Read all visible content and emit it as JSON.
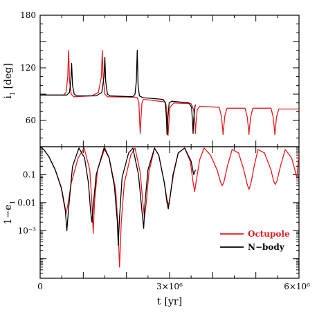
{
  "chart_data": [
    {
      "type": "line",
      "panel": "top",
      "ylabel": "i",
      "ylabel_sub": "1",
      "ylabel_unit": "[deg]",
      "xlim": [
        0,
        6000000
      ],
      "ylim": [
        30,
        180
      ],
      "yticks": [
        60,
        120,
        180
      ],
      "ytick_labels": [
        "60",
        "120",
        "180"
      ],
      "series": [
        {
          "color": "#e8191c",
          "x": [
            0,
            540000,
            600000,
            640000,
            660000,
            680000,
            720000,
            780000,
            1200000,
            1350000,
            1420000,
            1440000,
            1460000,
            1500000,
            1560000,
            2200000,
            2250000,
            2290000,
            2310000,
            2320000,
            2330000,
            2360000,
            2390000,
            2420000,
            2900000,
            2930000,
            2950000,
            2965000,
            2980000,
            3010000,
            3100000,
            3500000,
            3560000,
            3590000,
            3600000,
            3610000,
            3640000,
            3700000,
            4150000,
            4200000,
            4230000,
            4240000,
            4250000,
            4280000,
            4330000,
            4750000,
            4800000,
            4830000,
            4840000,
            4850000,
            4880000,
            4930000,
            5350000,
            5400000,
            5430000,
            5440000,
            5450000,
            5480000,
            5530000,
            5900000,
            6000000
          ],
          "y": [
            89,
            89,
            92,
            110,
            140,
            105,
            90,
            87,
            88,
            92,
            110,
            140,
            110,
            90,
            87,
            86.5,
            86,
            80,
            55,
            45,
            55,
            80,
            84,
            84,
            81,
            75,
            55,
            43,
            55,
            75,
            80,
            79,
            72,
            55,
            45,
            55,
            72,
            76,
            75,
            65,
            50,
            44,
            50,
            65,
            74,
            74,
            64,
            50,
            44,
            50,
            64,
            74,
            74,
            64,
            50,
            44,
            50,
            64,
            73,
            73,
            73
          ]
        },
        {
          "color": "#000000",
          "x": [
            0,
            620000,
            680000,
            710000,
            730000,
            750000,
            790000,
            850000,
            1300000,
            1430000,
            1480000,
            1500000,
            1520000,
            1560000,
            1620000,
            2150000,
            2200000,
            2230000,
            2250000,
            2270000,
            2300000,
            2380000,
            2850000,
            2900000,
            2925000,
            2940000,
            2960000,
            2990000,
            3050000,
            3450000,
            3510000,
            3530000,
            3545000,
            3560000,
            3590000,
            3600000
          ],
          "y": [
            89,
            89,
            92,
            105,
            125,
            100,
            90,
            88,
            88,
            92,
            110,
            132,
            105,
            90,
            88,
            87,
            90,
            105,
            140,
            100,
            88,
            86,
            84,
            80,
            65,
            44,
            62,
            80,
            82,
            80,
            75,
            60,
            45,
            62,
            76,
            78
          ]
        }
      ]
    },
    {
      "type": "line",
      "panel": "bottom",
      "xlabel": "t",
      "xlabel_unit": "[yr]",
      "ylabel": "1−e",
      "ylabel_sub": "1",
      "log_y": true,
      "xlim": [
        0,
        6000000
      ],
      "ylim": [
        2e-05,
        1
      ],
      "xticks": [
        0,
        3000000,
        6000000
      ],
      "xtick_labels": [
        "0",
        "3×10⁶",
        "6×10⁶"
      ],
      "yticks": [
        0.001,
        0.01,
        0.1
      ],
      "ytick_labels": [
        "10⁻³",
        "0.01",
        "0.1"
      ],
      "legend": [
        {
          "label": "Octupole",
          "color": "#e8191c"
        },
        {
          "label": "N−body",
          "color": "#000000"
        }
      ],
      "legend_position": "bottom-right",
      "series": [
        {
          "name": "Octupole",
          "color": "#e8191c",
          "x": [
            0,
            80000,
            200000,
            350000,
            480000,
            560000,
            600000,
            640000,
            720000,
            880000,
            1020000,
            1150000,
            1200000,
            1230000,
            1260000,
            1330000,
            1500000,
            1600000,
            1750000,
            1810000,
            1840000,
            1880000,
            1950000,
            2100000,
            2200000,
            2320000,
            2380000,
            2420000,
            2460000,
            2520000,
            2650000,
            2750000,
            2880000,
            2940000,
            2980000,
            3020000,
            3090000,
            3200000,
            3350000,
            3480000,
            3540000,
            3580000,
            3620000,
            3700000,
            3800000,
            3950000,
            4100000,
            4180000,
            4220000,
            4260000,
            4340000,
            4450000,
            4600000,
            4720000,
            4800000,
            4840000,
            4880000,
            4960000,
            5050000,
            5200000,
            5350000,
            5410000,
            5450000,
            5490000,
            5570000,
            5680000,
            5830000,
            5950000,
            6000000
          ],
          "y": [
            1,
            0.8,
            0.45,
            0.15,
            0.04,
            0.008,
            0.004,
            0.008,
            0.05,
            0.4,
            0.9,
            0.15,
            0.01,
            0.0008,
            0.01,
            0.15,
            0.9,
            0.4,
            0.03,
            0.001,
            5e-05,
            0.002,
            0.05,
            0.5,
            0.9,
            0.12,
            0.01,
            0.003,
            0.01,
            0.12,
            0.9,
            0.5,
            0.05,
            0.013,
            0.008,
            0.02,
            0.1,
            0.6,
            0.9,
            0.3,
            0.06,
            0.025,
            0.06,
            0.35,
            0.9,
            0.5,
            0.15,
            0.055,
            0.04,
            0.055,
            0.2,
            0.8,
            0.6,
            0.15,
            0.045,
            0.03,
            0.045,
            0.2,
            0.8,
            0.6,
            0.15,
            0.06,
            0.045,
            0.06,
            0.2,
            0.8,
            0.4,
            0.08,
            0.6
          ]
        },
        {
          "name": "N−body",
          "color": "#000000",
          "x": [
            0,
            80000,
            200000,
            350000,
            500000,
            580000,
            620000,
            650000,
            690000,
            750000,
            900000,
            1030000,
            1120000,
            1170000,
            1200000,
            1230000,
            1300000,
            1480000,
            1600000,
            1720000,
            1790000,
            1810000,
            1840000,
            1900000,
            2050000,
            2150000,
            2280000,
            2360000,
            2400000,
            2430000,
            2500000,
            2650000,
            2750000,
            2880000,
            2940000,
            2970000,
            3010000,
            3080000,
            3200000,
            3350000,
            3500000,
            3560000,
            3600000
          ],
          "y": [
            1,
            0.8,
            0.45,
            0.15,
            0.03,
            0.006,
            0.001,
            0.004,
            0.02,
            0.2,
            0.9,
            0.4,
            0.05,
            0.005,
            0.002,
            0.008,
            0.1,
            0.9,
            0.4,
            0.04,
            0.002,
            0.0003,
            0.003,
            0.08,
            0.6,
            0.9,
            0.1,
            0.005,
            0.0012,
            0.01,
            0.15,
            0.9,
            0.5,
            0.05,
            0.01,
            0.006,
            0.015,
            0.1,
            0.6,
            0.9,
            0.3,
            0.1,
            0.15
          ]
        }
      ]
    }
  ]
}
